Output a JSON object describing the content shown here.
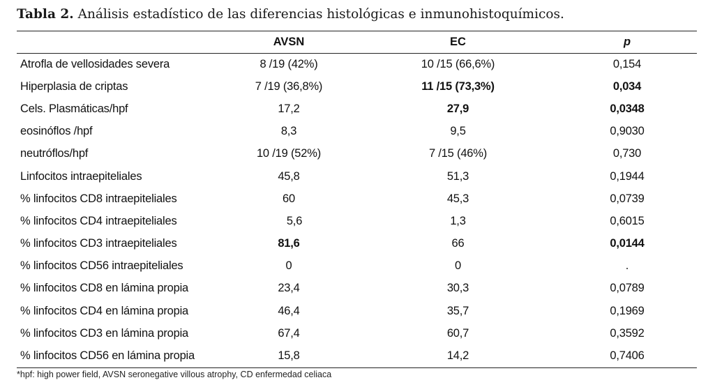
{
  "caption": {
    "label": "Tabla 2.",
    "text": "Análisis estadístico de las diferencias histológicas e inmunohistoquímicos."
  },
  "table": {
    "headers": [
      "",
      "AVSN",
      "EC",
      "p"
    ],
    "rows": [
      {
        "name": "Atrofla de vellosidades severa",
        "avsn": "8 /19 (42%)",
        "ec": "10 /15 (66,6%)",
        "p": "0,154",
        "bold": []
      },
      {
        "name": "Hiperplasia de criptas",
        "avsn": "7 /19 (36,8%)",
        "ec": "11 /15 (73,3%)",
        "p": "0,034",
        "bold": [
          "ec",
          "p"
        ]
      },
      {
        "name": "Cels. Plasmáticas/hpf",
        "avsn": "17,2",
        "ec": "27,9",
        "p": "0,0348",
        "bold": [
          "ec",
          "p"
        ]
      },
      {
        "name": "eosinóflos /hpf",
        "avsn": "8,3",
        "ec": "9,5",
        "p": "0,9030",
        "bold": []
      },
      {
        "name": "neutróflos/hpf",
        "avsn": "10 /19 (52%)",
        "ec": "7 /15 (46%)",
        "p": "0,730",
        "bold": []
      },
      {
        "name": "Linfocitos intraepiteliales",
        "avsn": "45,8",
        "ec": "51,3",
        "p": "0,1944",
        "bold": []
      },
      {
        "name": "% linfocitos CD8 intraepiteliales",
        "avsn": "60",
        "ec": "45,3",
        "p": "0,0739",
        "bold": []
      },
      {
        "name": "% linfocitos CD4 intraepiteliales",
        "avsn": "5,6",
        "ec": "1,3",
        "p": "0,6015",
        "bold": []
      },
      {
        "name": "% linfocitos CD3 intraepiteliales",
        "avsn": "81,6",
        "ec": "66",
        "p": "0,0144",
        "bold": [
          "avsn",
          "p"
        ]
      },
      {
        "name": "% linfocitos CD56 intraepiteliales",
        "avsn": "0",
        "ec": "0",
        "p": ".",
        "bold": []
      },
      {
        "name": "% linfocitos CD8 en lámina propia",
        "avsn": "23,4",
        "ec": "30,3",
        "p": "0,0789",
        "bold": []
      },
      {
        "name": "% linfocitos CD4 en lámina propia",
        "avsn": "46,4",
        "ec": "35,7",
        "p": "0,1969",
        "bold": []
      },
      {
        "name": "% linfocitos CD3 en lámina propia",
        "avsn": "67,4",
        "ec": "60,7",
        "p": "0,3592",
        "bold": []
      },
      {
        "name": "% linfocitos CD56 en lámina propia",
        "avsn": "15,8",
        "ec": "14,2",
        "p": "0,7406",
        "bold": []
      }
    ]
  },
  "footnote": "*hpf: high power field, AVSN seronegative villous atrophy, CD enfermedad celiaca"
}
